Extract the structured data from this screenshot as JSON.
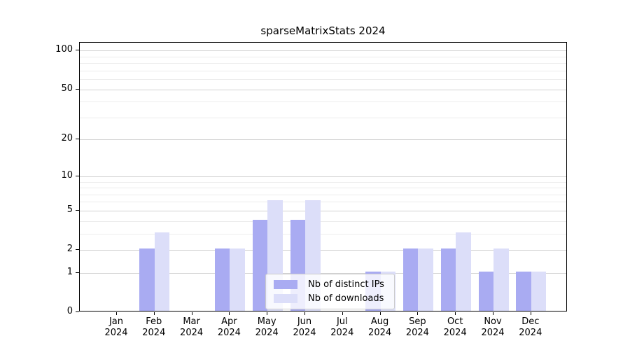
{
  "chart_data": {
    "type": "bar",
    "title": "sparseMatrixStats 2024",
    "categories": [
      "Jan",
      "Feb",
      "Mar",
      "Apr",
      "May",
      "Jun",
      "Jul",
      "Aug",
      "Sep",
      "Oct",
      "Nov",
      "Dec"
    ],
    "category_year": "2024",
    "series": [
      {
        "name": "Nb of distinct IPs",
        "color": "#a9abf2",
        "values": [
          0,
          2,
          0,
          2,
          4,
          4,
          0,
          1,
          2,
          2,
          1,
          1
        ]
      },
      {
        "name": "Nb of downloads",
        "color": "#dcdef9",
        "values": [
          0,
          3,
          0,
          2,
          6,
          6,
          0,
          1,
          2,
          3,
          2,
          1
        ]
      }
    ],
    "xlabel": "",
    "ylabel": "",
    "yscale": "log1p",
    "ylim": [
      0,
      115
    ],
    "yticks": [
      0,
      1,
      2,
      5,
      10,
      20,
      50,
      100
    ],
    "minor_yticks": [
      3,
      4,
      6,
      7,
      8,
      9,
      30,
      40,
      60,
      70,
      80,
      90
    ],
    "grid": "horizontal-only",
    "legend_position": "bottom-center-inside",
    "colors": {
      "axis": "#000000",
      "major_grid": "#d2d2d2",
      "minor_grid": "#ececec",
      "background": "#ffffff"
    }
  }
}
